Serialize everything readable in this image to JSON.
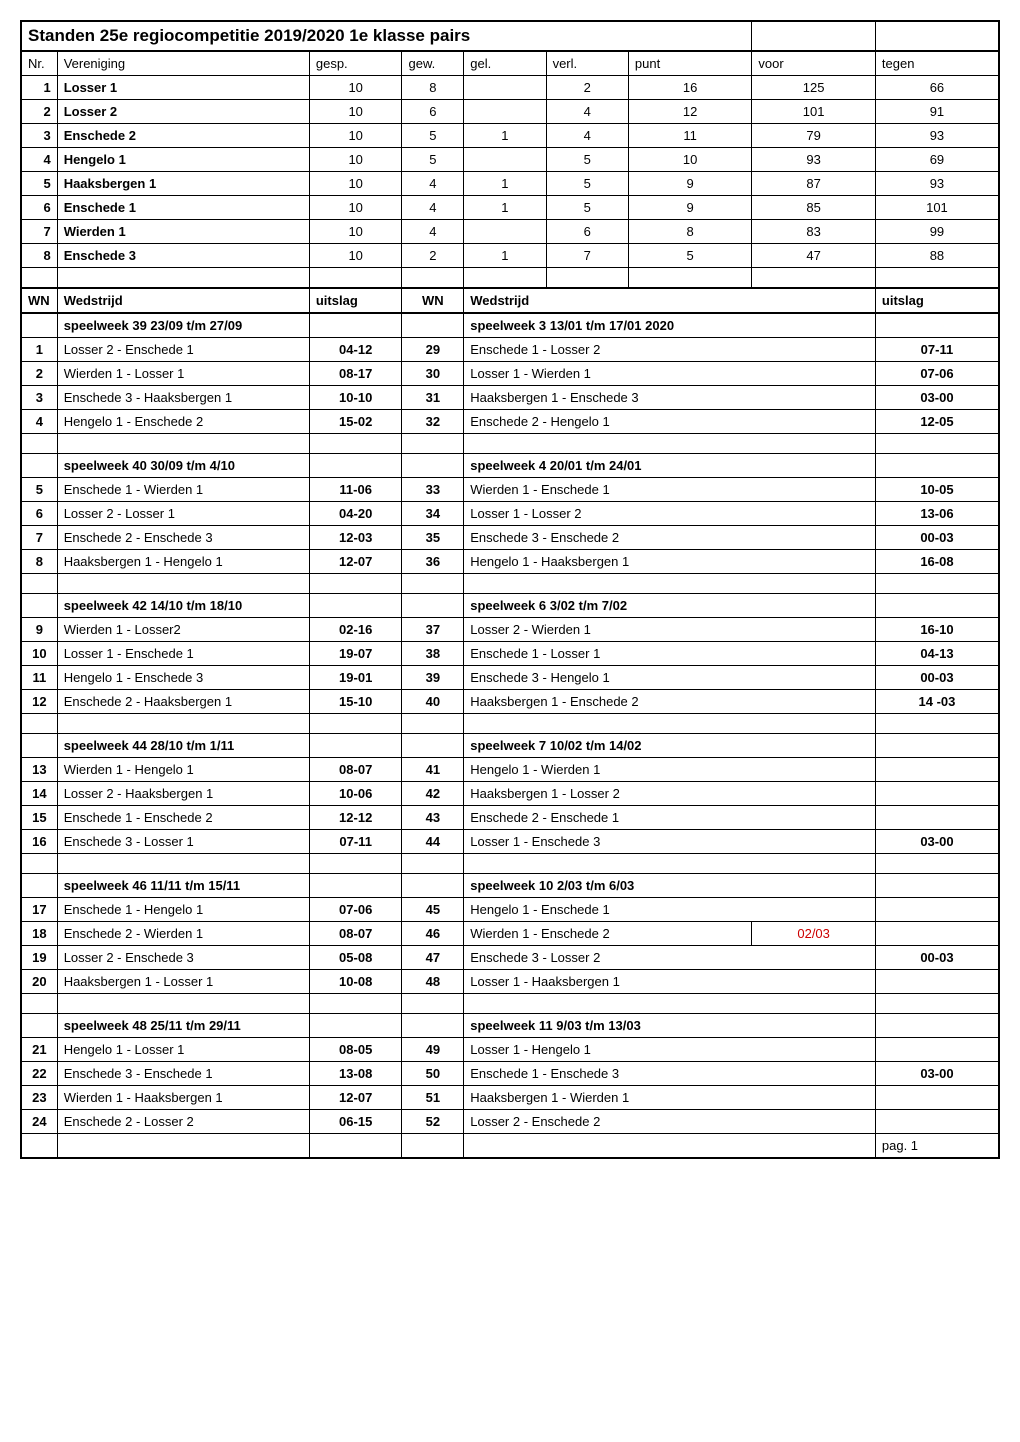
{
  "title": "Standen 25e regiocompetitie 2019/2020  1e klasse pairs",
  "headers": {
    "nr": "Nr.",
    "vereniging": "Vereniging",
    "gesp": "gesp.",
    "gew": "gew.",
    "gel": "gel.",
    "verl": "verl.",
    "punt": "punt",
    "voor": "voor",
    "tegen": "tegen"
  },
  "standings": [
    {
      "nr": 1,
      "team": "Losser 1",
      "gesp": 10,
      "gew": 8,
      "gel": "",
      "verl": 2,
      "punt": 16,
      "voor": 125,
      "tegen": 66
    },
    {
      "nr": 2,
      "team": "Losser 2",
      "gesp": 10,
      "gew": 6,
      "gel": "",
      "verl": 4,
      "punt": 12,
      "voor": 101,
      "tegen": 91
    },
    {
      "nr": 3,
      "team": "Enschede 2",
      "gesp": 10,
      "gew": 5,
      "gel": 1,
      "verl": 4,
      "punt": 11,
      "voor": 79,
      "tegen": 93
    },
    {
      "nr": 4,
      "team": "Hengelo 1",
      "gesp": 10,
      "gew": 5,
      "gel": "",
      "verl": 5,
      "punt": 10,
      "voor": 93,
      "tegen": 69
    },
    {
      "nr": 5,
      "team": "Haaksbergen 1",
      "gesp": 10,
      "gew": 4,
      "gel": 1,
      "verl": 5,
      "punt": 9,
      "voor": 87,
      "tegen": 93
    },
    {
      "nr": 6,
      "team": "Enschede 1",
      "gesp": 10,
      "gew": 4,
      "gel": 1,
      "verl": 5,
      "punt": 9,
      "voor": 85,
      "tegen": 101
    },
    {
      "nr": 7,
      "team": "Wierden 1",
      "gesp": 10,
      "gew": 4,
      "gel": "",
      "verl": 6,
      "punt": 8,
      "voor": 83,
      "tegen": 99
    },
    {
      "nr": 8,
      "team": "Enschede 3",
      "gesp": 10,
      "gew": 2,
      "gel": 1,
      "verl": 7,
      "punt": 5,
      "voor": 47,
      "tegen": 88
    }
  ],
  "sectionHeaders": {
    "wn": "WN",
    "wedstrijd": "Wedstrijd",
    "uitslag": "uitslag"
  },
  "weeks": [
    {
      "leftHeader": "speelweek 39 23/09 t/m 27/09",
      "rightHeader": "speelweek 3 13/01 t/m 17/01 2020",
      "matches": [
        {
          "nr": 1,
          "left": "Losser 2 - Enschede 1",
          "leftResult": "04-12",
          "wn": 29,
          "right": "Enschede 1 - Losser 2",
          "rightDate": "",
          "uitslag": "07-11"
        },
        {
          "nr": 2,
          "left": "Wierden 1 - Losser 1",
          "leftResult": "08-17",
          "wn": 30,
          "right": "Losser 1 - Wierden 1",
          "rightDate": "",
          "uitslag": "07-06"
        },
        {
          "nr": 3,
          "left": "Enschede 3 -  Haaksbergen 1",
          "leftResult": "10-10",
          "wn": 31,
          "right": "Haaksbergen 1 - Enschede 3",
          "rightDate": "",
          "uitslag": "03-00"
        },
        {
          "nr": 4,
          "left": "Hengelo 1 - Enschede 2",
          "leftResult": "15-02",
          "wn": 32,
          "right": "Enschede 2 - Hengelo 1",
          "rightDate": "",
          "uitslag": "12-05"
        }
      ]
    },
    {
      "leftHeader": "speelweek 40 30/09 t/m 4/10",
      "rightHeader": "speelweek 4 20/01 t/m 24/01",
      "matches": [
        {
          "nr": 5,
          "left": "Enschede 1 - Wierden 1",
          "leftResult": "11-06",
          "wn": 33,
          "right": "Wierden 1 - Enschede 1",
          "rightDate": "",
          "uitslag": "10-05"
        },
        {
          "nr": 6,
          "left": "Losser 2 - Losser 1",
          "leftResult": "04-20",
          "wn": 34,
          "right": "Losser 1 - Losser 2",
          "rightDate": "",
          "uitslag": "13-06"
        },
        {
          "nr": 7,
          "left": "Enschede 2 - Enschede 3",
          "leftResult": "12-03",
          "wn": 35,
          "right": "Enschede 3 - Enschede 2",
          "rightDate": "",
          "uitslag": "00-03"
        },
        {
          "nr": 8,
          "left": "Haaksbergen 1 - Hengelo 1",
          "leftResult": "12-07",
          "wn": 36,
          "right": "Hengelo 1 - Haaksbergen 1",
          "rightDate": "",
          "uitslag": "16-08"
        }
      ]
    },
    {
      "leftHeader": "speelweek 42 14/10 t/m 18/10",
      "rightHeader": "speelweek 6 3/02 t/m 7/02",
      "matches": [
        {
          "nr": 9,
          "left": "Wierden 1 - Losser2",
          "leftResult": "02-16",
          "wn": 37,
          "right": " Losser 2 - Wierden 1",
          "rightDate": "",
          "uitslag": "16-10"
        },
        {
          "nr": 10,
          "left": "Losser 1 - Enschede 1",
          "leftResult": "19-07",
          "wn": 38,
          "right": "Enschede 1 - Losser 1",
          "rightDate": "",
          "uitslag": "04-13"
        },
        {
          "nr": 11,
          "left": "Hengelo 1 - Enschede 3",
          "leftResult": "19-01",
          "wn": 39,
          "right": "Enschede 3 - Hengelo 1",
          "rightDate": "",
          "uitslag": "00-03"
        },
        {
          "nr": 12,
          "left": "Enschede 2 - Haaksbergen 1",
          "leftResult": "15-10",
          "wn": 40,
          "right": " Haaksbergen 1 - Enschede 2",
          "rightDate": "",
          "uitslag": "14 -03"
        }
      ]
    },
    {
      "leftHeader": "speelweek 44 28/10 t/m 1/11",
      "rightHeader": "speelweek 7 10/02 t/m 14/02",
      "matches": [
        {
          "nr": 13,
          "left": "Wierden 1 - Hengelo 1",
          "leftResult": "08-07",
          "wn": 41,
          "right": "Hengelo 1 - Wierden 1",
          "rightDate": "",
          "uitslag": ""
        },
        {
          "nr": 14,
          "left": "Losser 2 - Haaksbergen 1",
          "leftResult": "10-06",
          "wn": 42,
          "right": "Haaksbergen 1 - Losser 2",
          "rightDate": "",
          "uitslag": ""
        },
        {
          "nr": 15,
          "left": "Enschede 1 - Enschede 2",
          "leftResult": "12-12",
          "wn": 43,
          "right": "Enschede 2 - Enschede 1",
          "rightDate": "",
          "uitslag": ""
        },
        {
          "nr": 16,
          "left": "Enschede 3 - Losser 1",
          "leftResult": "07-11",
          "wn": 44,
          "right": "Losser 1 - Enschede 3",
          "rightDate": "",
          "uitslag": "03-00"
        }
      ]
    },
    {
      "leftHeader": "speelweek 46 11/11 t/m 15/11",
      "rightHeader": "speelweek 10 2/03 t/m 6/03",
      "matches": [
        {
          "nr": 17,
          "left": "Enschede 1 - Hengelo 1",
          "leftResult": "07-06",
          "wn": 45,
          "right": "Hengelo 1 - Enschede 1",
          "rightDate": "",
          "uitslag": ""
        },
        {
          "nr": 18,
          "left": "Enschede 2 - Wierden 1",
          "leftResult": "08-07",
          "wn": 46,
          "right": "Wierden 1 - Enschede 2",
          "rightDate": "02/03",
          "uitslag": ""
        },
        {
          "nr": 19,
          "left": "Losser 2 - Enschede 3",
          "leftResult": "05-08",
          "wn": 47,
          "right": "Enschede 3 - Losser 2",
          "rightDate": "",
          "uitslag": "00-03"
        },
        {
          "nr": 20,
          "left": "Haaksbergen 1 - Losser 1",
          "leftResult": "10-08",
          "wn": 48,
          "right": "Losser 1 - Haaksbergen 1",
          "rightDate": "",
          "uitslag": ""
        }
      ]
    },
    {
      "leftHeader": "speelweek 48 25/11 t/m 29/11",
      "rightHeader": "speelweek 11 9/03 t/m 13/03",
      "matches": [
        {
          "nr": 21,
          "left": "Hengelo 1 - Losser 1",
          "leftResult": "08-05",
          "wn": 49,
          "right": "Losser 1 - Hengelo 1",
          "rightDate": "",
          "uitslag": ""
        },
        {
          "nr": 22,
          "left": "Enschede 3 - Enschede 1",
          "leftResult": "13-08",
          "wn": 50,
          "right": "Enschede 1 - Enschede 3",
          "rightDate": "",
          "uitslag": "03-00"
        },
        {
          "nr": 23,
          "left": "Wierden 1 - Haaksbergen 1",
          "leftResult": "12-07",
          "wn": 51,
          "right": " Haaksbergen 1 - Wierden 1",
          "rightDate": "",
          "uitslag": ""
        },
        {
          "nr": 24,
          "left": "Enschede 2 - Losser 2",
          "leftResult": "06-15",
          "wn": 52,
          "right": "Losser 2 - Enschede 2",
          "rightDate": "",
          "uitslag": ""
        }
      ]
    }
  ],
  "footer": "pag. 1"
}
